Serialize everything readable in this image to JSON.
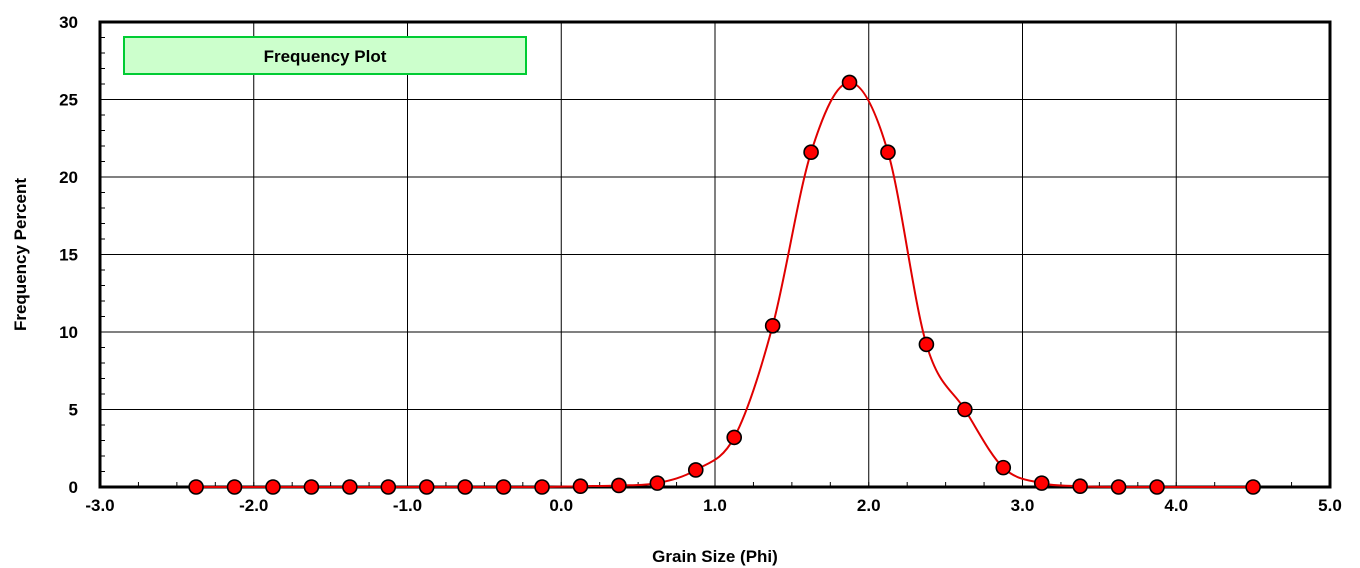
{
  "chart_data": {
    "type": "line",
    "title": "Frequency Plot",
    "xlabel": "Grain Size (Phi)",
    "ylabel": "Frequency Percent",
    "xlim": [
      -3.0,
      5.0
    ],
    "ylim": [
      0,
      30
    ],
    "grid": true,
    "x_ticks": [
      -3,
      -2,
      -1,
      0,
      1,
      2,
      3,
      4,
      5
    ],
    "x_tick_labels": [
      "-3.0",
      "-2.0",
      "-1.0",
      "0.0",
      "1.0",
      "2.0",
      "3.0",
      "4.0",
      "5.0"
    ],
    "y_ticks": [
      0,
      5,
      10,
      15,
      20,
      25,
      30
    ],
    "y_tick_labels": [
      "0",
      "5",
      "10",
      "15",
      "20",
      "25",
      "30"
    ],
    "colors": {
      "line": "#e00000",
      "marker_fill": "#ff0000",
      "marker_stroke": "#000000",
      "title_box_fill": "#ccffcc",
      "title_box_stroke": "#00cc33",
      "grid": "#000000"
    },
    "series": [
      {
        "x": [
          -2.375,
          -2.125,
          -1.875,
          -1.625,
          -1.375,
          -1.125,
          -0.875,
          -0.625,
          -0.375,
          -0.125,
          0.125,
          0.375,
          0.625,
          0.875,
          1.125,
          1.375,
          1.625,
          1.875,
          2.125,
          2.375,
          2.625,
          2.875,
          3.125,
          3.375,
          3.625,
          3.875,
          4.5
        ],
        "y": [
          0.0,
          0.0,
          0.0,
          0.0,
          0.0,
          0.0,
          0.0,
          0.0,
          0.0,
          0.0,
          0.05,
          0.1,
          0.25,
          1.1,
          3.2,
          10.4,
          21.6,
          26.1,
          21.6,
          9.2,
          5.0,
          1.25,
          0.25,
          0.05,
          0.0,
          0.0,
          0.0
        ]
      }
    ]
  }
}
